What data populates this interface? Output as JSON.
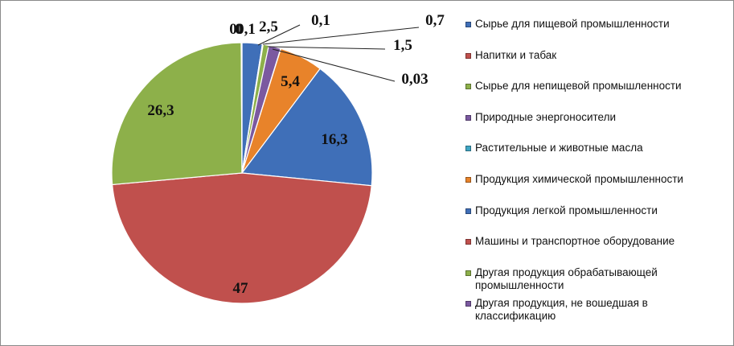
{
  "chart_data": {
    "type": "pie",
    "title": "",
    "slices": [
      {
        "label": "Сырье для пищевой промышленности",
        "value": 2.5,
        "display": "2,5",
        "color": "#3f6fb8"
      },
      {
        "label": "Напитки и табак",
        "value": 0.1,
        "display": "0,1",
        "color": "#c0504d"
      },
      {
        "label": "Сырье для непищевой промышленности",
        "value": 0.7,
        "display": "0,7",
        "color": "#8db04a"
      },
      {
        "label": "Природные энергоносители",
        "value": 1.5,
        "display": "1,5",
        "color": "#7b59a0"
      },
      {
        "label": "Растительные и животные масла",
        "value": 0.03,
        "display": "0,03",
        "color": "#3fa6c4"
      },
      {
        "label": "Продукция химической промышленности",
        "value": 5.4,
        "display": "5,4",
        "color": "#e8832a"
      },
      {
        "label": "Продукция легкой промышленности",
        "value": 16.3,
        "display": "16,3",
        "color": "#3f6fb8"
      },
      {
        "label": "Машины и транспортное оборудование",
        "value": 47,
        "display": "47",
        "color": "#c0504d"
      },
      {
        "label": "Другая продукция обрабатывающей промышленности",
        "value": 26.3,
        "display": "26,3",
        "color": "#8db04a"
      },
      {
        "label": "Другая продукция, не вошедшая в классификацию",
        "value": 0.1,
        "display": "0,1",
        "color": "#7b59a0"
      }
    ],
    "stray_labels": [
      "0",
      "0"
    ],
    "legend_position": "right"
  }
}
